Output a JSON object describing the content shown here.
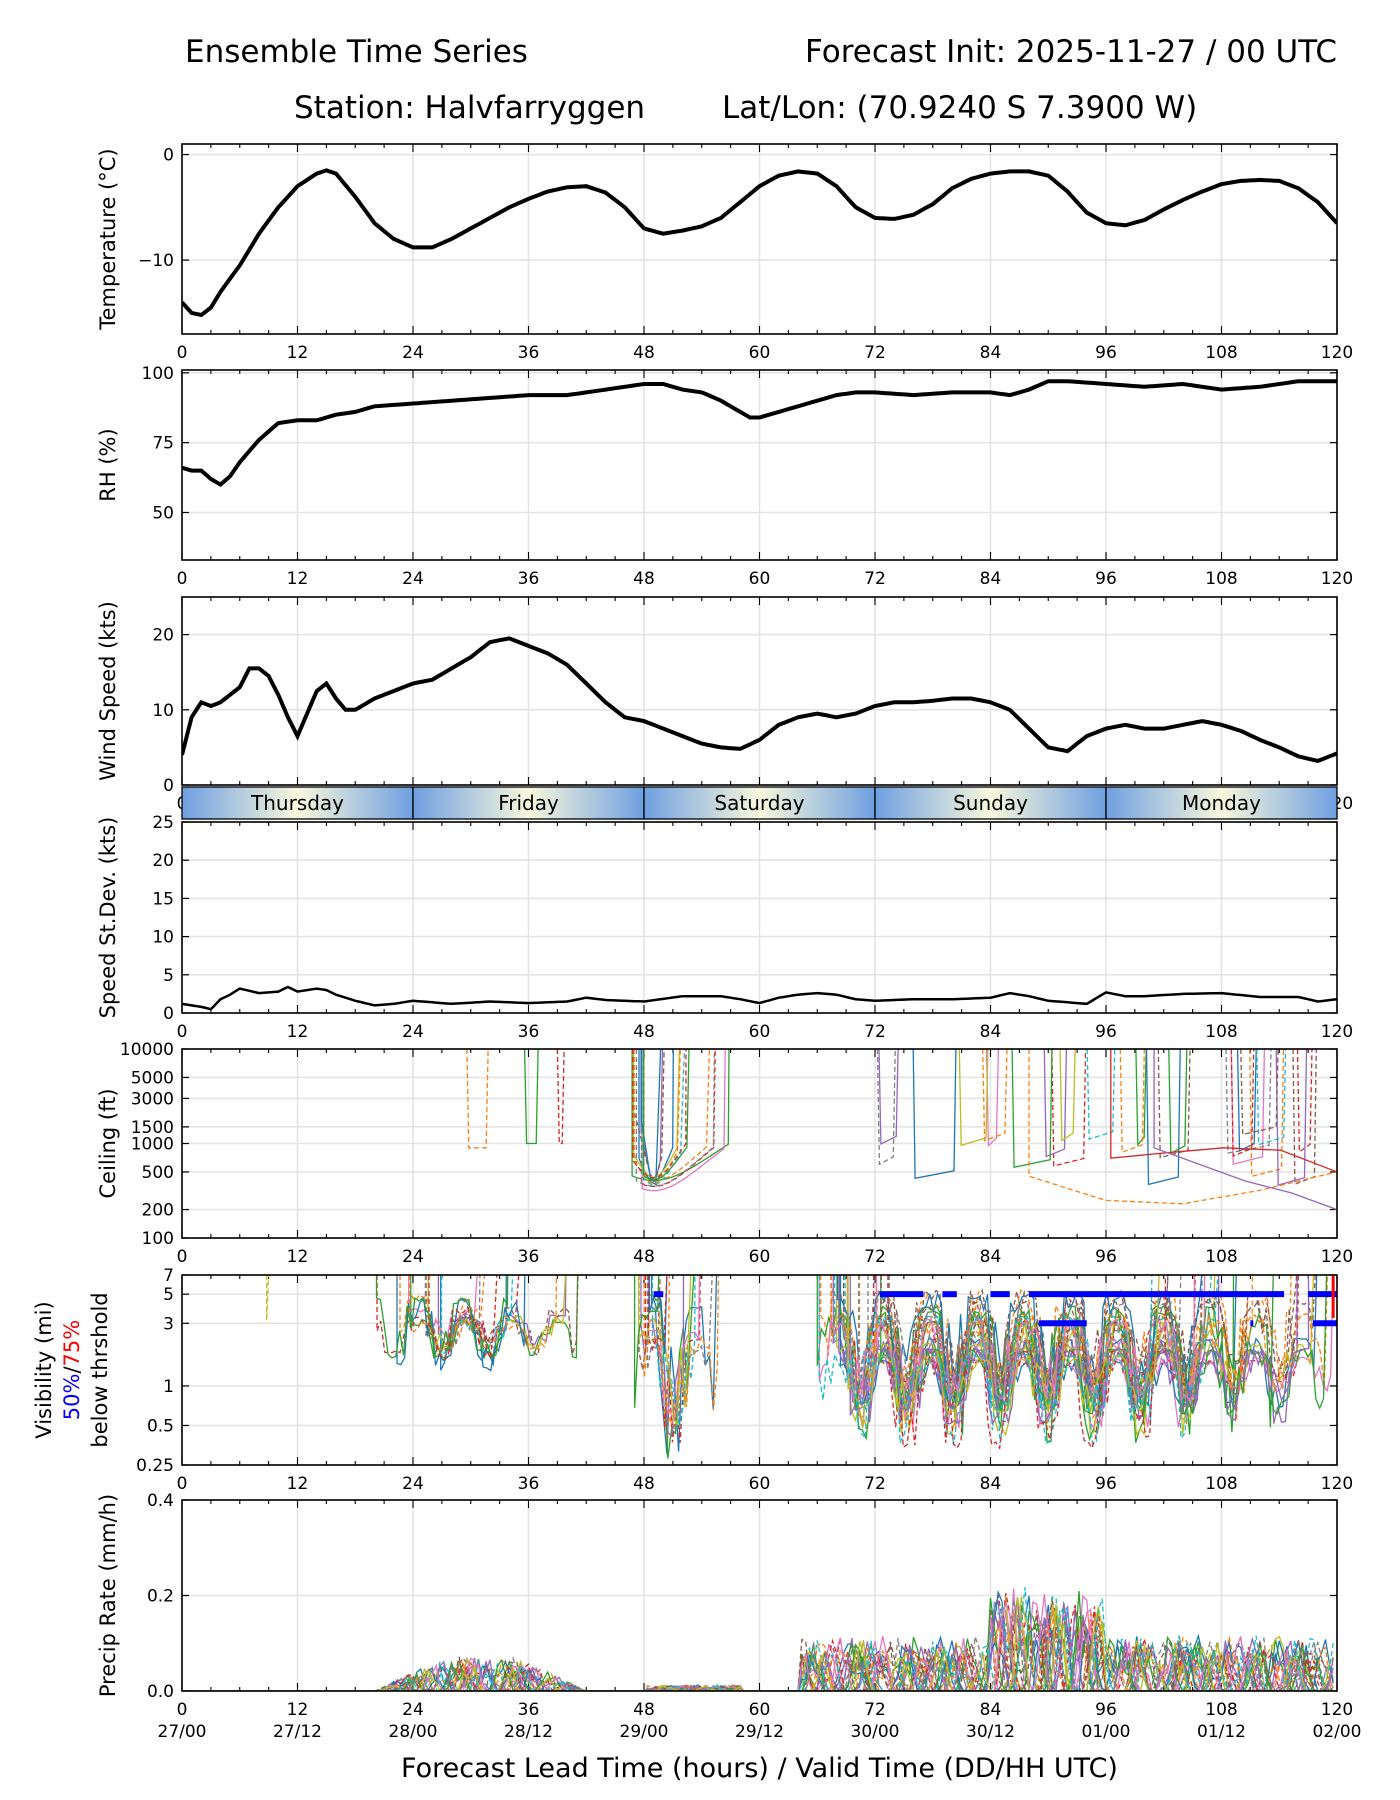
{
  "header": {
    "title": "Ensemble Time Series",
    "init": "Forecast Init: 2025-11-27 / 00 UTC",
    "station": "Station: Halvfarryggen",
    "latlon": "Lat/Lon: (70.9240 S 7.3900 W)"
  },
  "colors": {
    "ensemble": [
      "#1f77b4",
      "#ff7f0e",
      "#2ca02c",
      "#d62728",
      "#9467bd",
      "#8c564b",
      "#e377c2",
      "#7f7f7f",
      "#bcbd22",
      "#17becf"
    ],
    "mean": "#000000",
    "vis50": "#0000ff",
    "vis75": "#ff0000",
    "day_band_edge": "#6f9fe0",
    "day_band_mid": "#f8f8dc",
    "grid": "#e4e4e4"
  },
  "xaxis": {
    "lead_ticks": [
      "0",
      "12",
      "24",
      "36",
      "48",
      "60",
      "72",
      "84",
      "96",
      "108",
      "120"
    ],
    "valid_ticks": [
      "27/00",
      "27/12",
      "28/00",
      "28/12",
      "29/00",
      "29/12",
      "30/00",
      "30/12",
      "01/00",
      "01/12",
      "02/00"
    ],
    "label": "Forecast Lead Time (hours) / Valid Time (DD/HH UTC)"
  },
  "day_labels": [
    "Thursday",
    "Friday",
    "Saturday",
    "Sunday",
    "Monday"
  ],
  "chart_data": [
    {
      "id": "temperature",
      "type": "line",
      "ylabel": "Temperature (°C)",
      "ylim": [
        -17,
        1
      ],
      "yticks": [
        "0",
        "−10"
      ],
      "ytick_values": [
        0,
        -10
      ],
      "x": [
        0,
        1,
        2,
        3,
        4,
        6,
        8,
        10,
        12,
        14,
        15,
        16,
        18,
        20,
        22,
        24,
        26,
        28,
        30,
        32,
        34,
        36,
        38,
        40,
        42,
        44,
        46,
        48,
        50,
        52,
        54,
        56,
        58,
        60,
        62,
        64,
        66,
        68,
        70,
        72,
        74,
        76,
        78,
        80,
        82,
        84,
        86,
        88,
        90,
        92,
        94,
        96,
        98,
        100,
        102,
        104,
        106,
        108,
        110,
        112,
        114,
        116,
        118,
        120
      ],
      "mean": [
        -14,
        -15,
        -15.2,
        -14.5,
        -13,
        -10.5,
        -7.5,
        -5,
        -3,
        -1.8,
        -1.5,
        -1.8,
        -4,
        -6.5,
        -8,
        -8.8,
        -8.8,
        -8,
        -7,
        -6,
        -5,
        -4.2,
        -3.5,
        -3.1,
        -3,
        -3.6,
        -5,
        -7,
        -7.5,
        -7.2,
        -6.8,
        -6,
        -4.5,
        -3,
        -2,
        -1.6,
        -1.8,
        -3,
        -5,
        -6,
        -6.1,
        -5.7,
        -4.7,
        -3.2,
        -2.3,
        -1.8,
        -1.6,
        -1.6,
        -2,
        -3.5,
        -5.5,
        -6.5,
        -6.7,
        -6.2,
        -5.2,
        -4.3,
        -3.5,
        -2.8,
        -2.5,
        -2.4,
        -2.5,
        -3.2,
        -4.5,
        -6.5
      ]
    },
    {
      "id": "rh",
      "type": "line",
      "ylabel": "RH (%)",
      "ylim": [
        33,
        101
      ],
      "yticks": [
        "50",
        "75",
        "100"
      ],
      "ytick_values": [
        50,
        75,
        100
      ],
      "x": [
        0,
        1,
        2,
        3,
        4,
        5,
        6,
        8,
        10,
        12,
        14,
        16,
        18,
        20,
        24,
        28,
        32,
        36,
        40,
        44,
        48,
        50,
        52,
        54,
        56,
        58,
        59,
        60,
        62,
        64,
        66,
        68,
        70,
        72,
        76,
        80,
        84,
        86,
        88,
        90,
        92,
        96,
        100,
        104,
        108,
        112,
        116,
        120
      ],
      "mean": [
        66,
        65,
        65,
        62,
        60,
        63,
        68,
        76,
        82,
        83,
        83,
        85,
        86,
        88,
        89,
        90,
        91,
        92,
        92,
        94,
        96,
        96,
        94,
        93,
        90,
        86,
        84,
        84,
        86,
        88,
        90,
        92,
        93,
        93,
        92,
        93,
        93,
        92,
        94,
        97,
        97,
        96,
        95,
        96,
        94,
        95,
        97,
        97
      ]
    },
    {
      "id": "wind_speed",
      "type": "line",
      "ylabel": "Wind Speed (kts)",
      "ylim": [
        0,
        25
      ],
      "yticks": [
        "0",
        "10",
        "20"
      ],
      "ytick_values": [
        0,
        10,
        20
      ],
      "x": [
        0,
        1,
        2,
        3,
        4,
        5,
        6,
        7,
        8,
        9,
        10,
        11,
        12,
        13,
        14,
        15,
        16,
        17,
        18,
        20,
        22,
        24,
        26,
        28,
        30,
        32,
        34,
        36,
        38,
        40,
        42,
        44,
        46,
        48,
        50,
        52,
        54,
        56,
        58,
        60,
        62,
        64,
        66,
        68,
        70,
        72,
        74,
        76,
        78,
        80,
        82,
        84,
        86,
        88,
        90,
        92,
        94,
        96,
        98,
        100,
        102,
        104,
        106,
        108,
        110,
        112,
        114,
        116,
        118,
        120
      ],
      "mean": [
        4,
        9,
        11,
        10.5,
        11,
        12,
        13,
        15.5,
        15.5,
        14.5,
        12,
        9,
        6.5,
        9.5,
        12.5,
        13.5,
        11.5,
        10,
        10,
        11.5,
        12.5,
        13.5,
        14,
        15.5,
        17,
        19,
        19.5,
        18.5,
        17.5,
        16,
        13.5,
        11,
        9,
        8.5,
        7.5,
        6.5,
        5.5,
        5,
        4.8,
        6,
        8,
        9,
        9.5,
        9,
        9.5,
        10.5,
        11,
        11,
        11.2,
        11.5,
        11.5,
        11,
        10,
        7.5,
        5,
        4.5,
        6.5,
        7.5,
        8,
        7.5,
        7.5,
        8,
        8.5,
        8,
        7.2,
        6,
        5,
        3.8,
        3.2,
        4.2
      ]
    },
    {
      "id": "speed_stdev",
      "type": "line",
      "ylabel": "Speed St.Dev. (kts)",
      "ylim": [
        0,
        25
      ],
      "yticks": [
        "0",
        "5",
        "10",
        "15",
        "20",
        "25"
      ],
      "ytick_values": [
        0,
        5,
        10,
        15,
        20,
        25
      ],
      "x": [
        0,
        1,
        2,
        3,
        4,
        5,
        6,
        8,
        10,
        11,
        12,
        14,
        15,
        16,
        18,
        20,
        22,
        24,
        28,
        32,
        36,
        40,
        42,
        44,
        48,
        52,
        56,
        58,
        60,
        62,
        64,
        66,
        68,
        70,
        72,
        76,
        80,
        84,
        86,
        88,
        90,
        92,
        94,
        96,
        98,
        100,
        104,
        108,
        112,
        116,
        118,
        120
      ],
      "mean": [
        1.2,
        1,
        0.8,
        0.5,
        1.8,
        2.4,
        3.2,
        2.6,
        2.8,
        3.4,
        2.8,
        3.2,
        3,
        2.4,
        1.6,
        1,
        1.2,
        1.6,
        1.2,
        1.5,
        1.3,
        1.5,
        2,
        1.7,
        1.5,
        2.2,
        2.2,
        1.8,
        1.3,
        2,
        2.4,
        2.6,
        2.4,
        1.8,
        1.6,
        1.8,
        1.8,
        2,
        2.6,
        2.2,
        1.6,
        1.4,
        1.2,
        2.7,
        2.2,
        2.2,
        2.5,
        2.6,
        2.1,
        2.1,
        1.5,
        1.8
      ]
    },
    {
      "id": "ceiling",
      "type": "line",
      "scale": "log",
      "ylabel": "Ceiling (ft)",
      "ylim": [
        100,
        10000
      ],
      "yticks": [
        "100",
        "200",
        "500",
        "1000",
        "1500",
        "3000",
        "5000",
        "10000"
      ],
      "ytick_values": [
        100,
        200,
        500,
        1000,
        1500,
        3000,
        5000,
        10000
      ]
    },
    {
      "id": "visibility",
      "type": "line",
      "scale": "log",
      "ylabel": "Visibility (mi)",
      "ylabel_50": "50%",
      "ylabel_sep": "/",
      "ylabel_75": "75%",
      "ylabel_2": "below thrshold",
      "ylim": [
        0.25,
        7
      ],
      "yticks": [
        "0.25",
        "0.5",
        "1",
        "3",
        "5",
        "7"
      ],
      "ytick_values": [
        0.25,
        0.5,
        1,
        3,
        5,
        7
      ],
      "threshold_50": [
        {
          "x0": 49,
          "x1": 50,
          "y": 5
        },
        {
          "x0": 72.5,
          "x1": 77,
          "y": 5
        },
        {
          "x0": 79,
          "x1": 80.5,
          "y": 5
        },
        {
          "x0": 84,
          "x1": 86,
          "y": 5
        },
        {
          "x0": 88,
          "x1": 114.5,
          "y": 5
        },
        {
          "x0": 117,
          "x1": 120,
          "y": 5
        },
        {
          "x0": 89,
          "x1": 94,
          "y": 3
        },
        {
          "x0": 111,
          "x1": 111.3,
          "y": 3
        },
        {
          "x0": 117.5,
          "x1": 120,
          "y": 3
        }
      ]
    },
    {
      "id": "precip",
      "type": "line",
      "ylabel": "Precip Rate (mm/h)",
      "ylim": [
        0,
        0.4
      ],
      "yticks": [
        "0.0",
        "0.2",
        "0.4"
      ],
      "ytick_values": [
        0,
        0.2,
        0.4
      ]
    }
  ]
}
